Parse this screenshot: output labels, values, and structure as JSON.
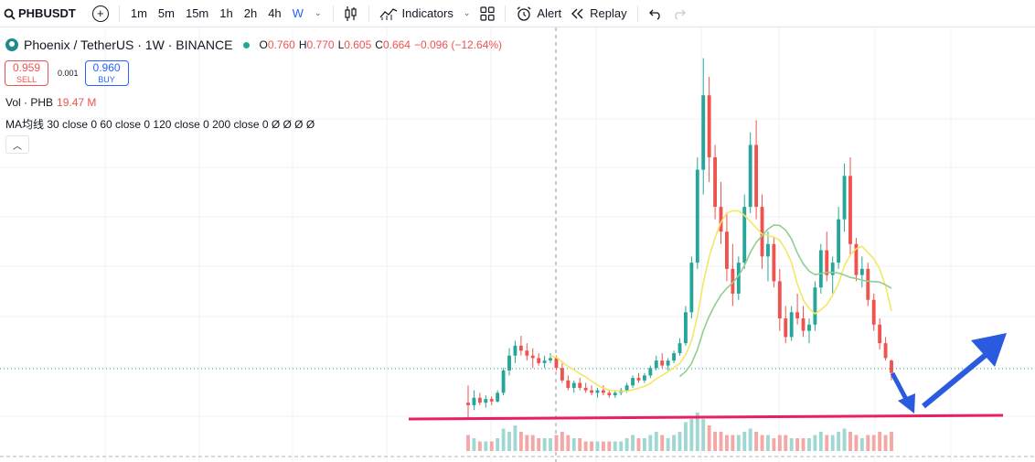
{
  "toolbar": {
    "symbol": "PHBUSDT",
    "intervals": [
      "1m",
      "5m",
      "15m",
      "1h",
      "2h",
      "4h",
      "W"
    ],
    "indicators_label": "Indicators",
    "alert_label": "Alert",
    "replay_label": "Replay"
  },
  "legend": {
    "title": "Phoenix / TetherUS · 1W · BINANCE",
    "open_label": "O",
    "open": "0.760",
    "high_label": "H",
    "high": "0.770",
    "low_label": "L",
    "low": "0.605",
    "close_label": "C",
    "close": "0.664",
    "change": "−0.096 (−12.64%)"
  },
  "trade": {
    "sell_price": "0.959",
    "sell_label": "SELL",
    "spread": "0.001",
    "buy_price": "0.960",
    "buy_label": "BUY"
  },
  "volume": {
    "label": "Vol · PHB",
    "value": "19.47 M"
  },
  "ma": {
    "label": "MA均线 30 close 0 60 close 0 120 close 0 200 close 0  Ø  Ø  Ø  Ø"
  },
  "colors": {
    "up": "#26a69a",
    "down": "#ef5350",
    "ma30": "#f5e663",
    "ma60": "#8fcf8f",
    "support": "#e91e63",
    "arrow": "#2a5bdf"
  },
  "chart_data": {
    "type": "candlestick",
    "timeframe": "1W",
    "note_axes": "no price or time axis labels visible in screenshot",
    "last_bar": {
      "open": 0.76,
      "high": 0.77,
      "low": 0.605,
      "close": 0.664
    },
    "candles": [
      [
        0.42,
        0.56,
        0.3,
        0.4
      ],
      [
        0.4,
        0.52,
        0.36,
        0.46
      ],
      [
        0.46,
        0.5,
        0.4,
        0.42
      ],
      [
        0.42,
        0.48,
        0.38,
        0.45
      ],
      [
        0.45,
        0.47,
        0.4,
        0.43
      ],
      [
        0.43,
        0.52,
        0.42,
        0.5
      ],
      [
        0.5,
        0.7,
        0.48,
        0.68
      ],
      [
        0.68,
        0.86,
        0.64,
        0.8
      ],
      [
        0.8,
        0.92,
        0.74,
        0.88
      ],
      [
        0.88,
        0.96,
        0.8,
        0.84
      ],
      [
        0.84,
        0.9,
        0.76,
        0.8
      ],
      [
        0.8,
        0.86,
        0.7,
        0.78
      ],
      [
        0.78,
        0.82,
        0.72,
        0.74
      ],
      [
        0.74,
        0.8,
        0.7,
        0.76
      ],
      [
        0.76,
        0.82,
        0.74,
        0.78
      ],
      [
        0.78,
        0.8,
        0.68,
        0.7
      ],
      [
        0.7,
        0.74,
        0.58,
        0.6
      ],
      [
        0.6,
        0.64,
        0.52,
        0.54
      ],
      [
        0.54,
        0.6,
        0.5,
        0.58
      ],
      [
        0.58,
        0.62,
        0.52,
        0.54
      ],
      [
        0.54,
        0.58,
        0.5,
        0.52
      ],
      [
        0.52,
        0.56,
        0.48,
        0.5
      ],
      [
        0.5,
        0.54,
        0.46,
        0.52
      ],
      [
        0.52,
        0.56,
        0.48,
        0.5
      ],
      [
        0.5,
        0.52,
        0.46,
        0.48
      ],
      [
        0.48,
        0.52,
        0.46,
        0.5
      ],
      [
        0.5,
        0.54,
        0.48,
        0.52
      ],
      [
        0.52,
        0.58,
        0.5,
        0.56
      ],
      [
        0.56,
        0.64,
        0.54,
        0.62
      ],
      [
        0.62,
        0.66,
        0.58,
        0.6
      ],
      [
        0.6,
        0.66,
        0.58,
        0.64
      ],
      [
        0.64,
        0.72,
        0.62,
        0.7
      ],
      [
        0.7,
        0.8,
        0.68,
        0.76
      ],
      [
        0.76,
        0.82,
        0.7,
        0.72
      ],
      [
        0.72,
        0.78,
        0.68,
        0.76
      ],
      [
        0.76,
        0.84,
        0.74,
        0.82
      ],
      [
        0.82,
        0.94,
        0.8,
        0.9
      ],
      [
        0.9,
        1.2,
        0.88,
        1.15
      ],
      [
        1.15,
        1.6,
        1.1,
        1.55
      ],
      [
        1.55,
        2.4,
        1.5,
        2.3
      ],
      [
        2.3,
        3.2,
        2.1,
        2.9
      ],
      [
        2.9,
        3.05,
        2.2,
        2.4
      ],
      [
        2.4,
        2.5,
        1.9,
        2.0
      ],
      [
        2.0,
        2.2,
        1.7,
        1.8
      ],
      [
        1.8,
        1.95,
        1.4,
        1.5
      ],
      [
        1.5,
        1.7,
        1.2,
        1.3
      ],
      [
        1.3,
        1.6,
        1.25,
        1.55
      ],
      [
        1.55,
        2.1,
        1.5,
        2.0
      ],
      [
        2.0,
        2.6,
        1.95,
        2.5
      ],
      [
        2.5,
        2.7,
        1.9,
        2.0
      ],
      [
        2.0,
        2.1,
        1.5,
        1.6
      ],
      [
        1.6,
        1.8,
        1.4,
        1.7
      ],
      [
        1.7,
        1.75,
        1.35,
        1.4
      ],
      [
        1.4,
        1.5,
        1.0,
        1.1
      ],
      [
        1.1,
        1.2,
        0.9,
        0.95
      ],
      [
        0.95,
        1.2,
        0.92,
        1.15
      ],
      [
        1.15,
        1.3,
        1.05,
        1.1
      ],
      [
        1.1,
        1.2,
        0.95,
        1.0
      ],
      [
        1.0,
        1.1,
        0.9,
        1.05
      ],
      [
        1.05,
        1.4,
        1.0,
        1.35
      ],
      [
        1.35,
        1.7,
        1.3,
        1.65
      ],
      [
        1.65,
        1.8,
        1.4,
        1.45
      ],
      [
        1.45,
        1.6,
        1.3,
        1.55
      ],
      [
        1.55,
        2.0,
        1.5,
        1.9
      ],
      [
        1.9,
        2.35,
        1.8,
        2.25
      ],
      [
        2.25,
        2.4,
        1.6,
        1.7
      ],
      [
        1.7,
        1.75,
        1.4,
        1.45
      ],
      [
        1.45,
        1.6,
        1.35,
        1.5
      ],
      [
        1.5,
        1.55,
        1.2,
        1.25
      ],
      [
        1.25,
        1.3,
        1.0,
        1.05
      ],
      [
        1.05,
        1.1,
        0.85,
        0.9
      ],
      [
        0.9,
        0.95,
        0.76,
        0.78
      ],
      [
        0.76,
        0.77,
        0.6,
        0.66
      ]
    ],
    "volumes": [
      0.5,
      0.4,
      0.3,
      0.3,
      0.3,
      0.4,
      0.7,
      0.6,
      0.8,
      0.6,
      0.5,
      0.5,
      0.4,
      0.4,
      0.4,
      0.5,
      0.6,
      0.5,
      0.4,
      0.4,
      0.3,
      0.3,
      0.3,
      0.3,
      0.3,
      0.3,
      0.3,
      0.4,
      0.5,
      0.4,
      0.4,
      0.5,
      0.6,
      0.5,
      0.4,
      0.5,
      0.6,
      0.9,
      1.0,
      1.2,
      1.0,
      0.8,
      0.6,
      0.6,
      0.5,
      0.5,
      0.5,
      0.6,
      0.7,
      0.6,
      0.5,
      0.5,
      0.4,
      0.5,
      0.5,
      0.4,
      0.4,
      0.4,
      0.4,
      0.5,
      0.6,
      0.5,
      0.5,
      0.6,
      0.7,
      0.6,
      0.5,
      0.4,
      0.5,
      0.5,
      0.6,
      0.5,
      0.6
    ],
    "ylim": [
      0.2,
      3.3
    ]
  }
}
